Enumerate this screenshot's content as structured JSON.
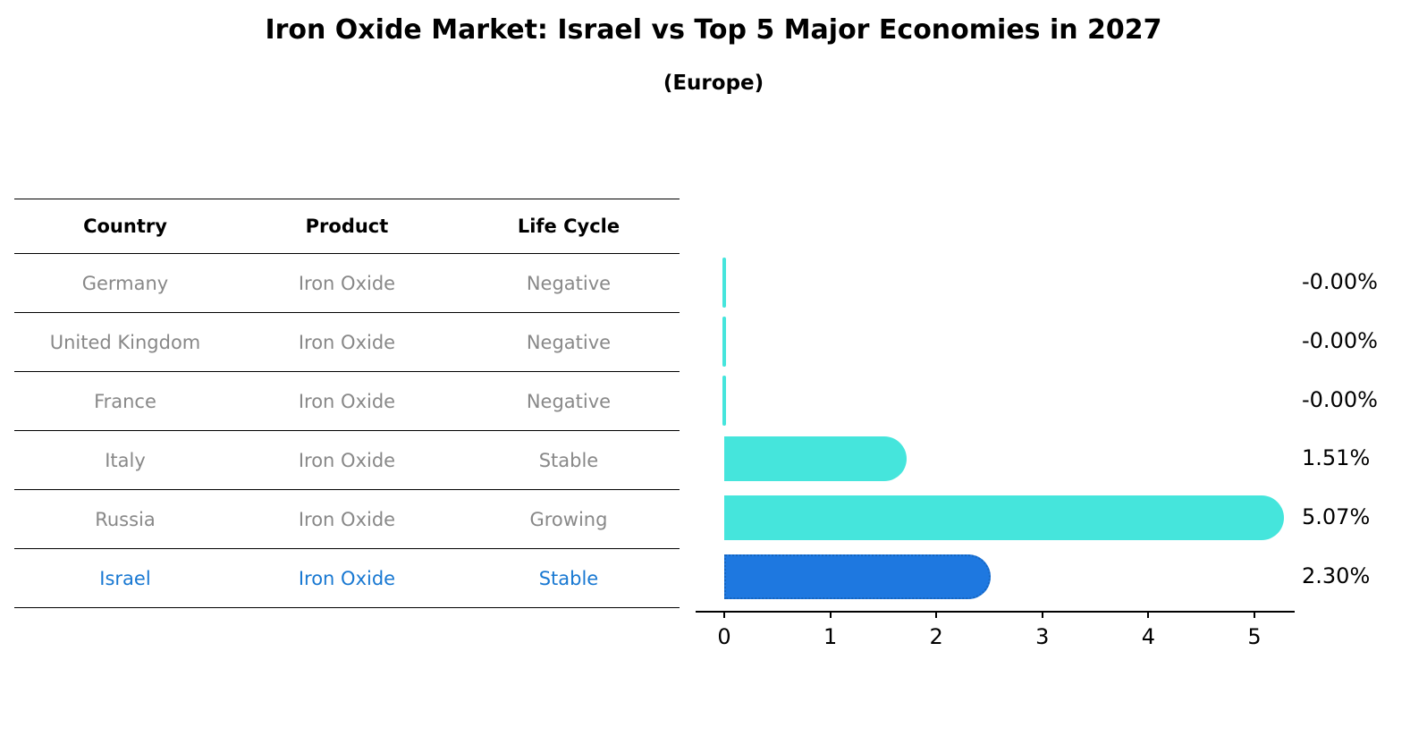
{
  "title": "Iron Oxide Market: Israel vs Top 5 Major Economies in 2027",
  "subtitle": "(Europe)",
  "table": {
    "headers": [
      "Country",
      "Product",
      "Life Cycle"
    ],
    "rows": [
      {
        "country": "Germany",
        "product": "Iron Oxide",
        "life_cycle": "Negative",
        "highlight": false
      },
      {
        "country": "United Kingdom",
        "product": "Iron Oxide",
        "life_cycle": "Negative",
        "highlight": false
      },
      {
        "country": "France",
        "product": "Iron Oxide",
        "life_cycle": "Negative",
        "highlight": false
      },
      {
        "country": "Italy",
        "product": "Iron Oxide",
        "life_cycle": "Stable",
        "highlight": false
      },
      {
        "country": "Russia",
        "product": "Iron Oxide",
        "life_cycle": "Growing",
        "highlight": false
      },
      {
        "country": "Israel",
        "product": "Iron Oxide",
        "life_cycle": "Stable",
        "highlight": true
      }
    ]
  },
  "chart_data": {
    "type": "bar",
    "orientation": "horizontal",
    "title": "Iron Oxide Market: Israel vs Top 5 Major Economies in 2027",
    "subtitle": "(Europe)",
    "categories": [
      "Germany",
      "United Kingdom",
      "France",
      "Italy",
      "Russia",
      "Israel"
    ],
    "values": [
      -0.0,
      -0.0,
      -0.0,
      1.51,
      5.07,
      2.3
    ],
    "value_labels": [
      "-0.00%",
      "-0.00%",
      "-0.00%",
      "1.51%",
      "5.07%",
      "2.30%"
    ],
    "life_cycle": [
      "Negative",
      "Negative",
      "Negative",
      "Stable",
      "Growing",
      "Stable"
    ],
    "x_ticks": [
      0,
      1,
      2,
      3,
      4,
      5
    ],
    "xlim": [
      -0.27,
      5.65
    ],
    "grid": false,
    "legend": "none",
    "colors": {
      "bar": "#45E5DC",
      "highlight_bar": "#1E78E0",
      "highlight_border": "#1565C0",
      "row_text": "#888888",
      "highlight_text": "#1878D2",
      "axis": "#000000"
    }
  }
}
